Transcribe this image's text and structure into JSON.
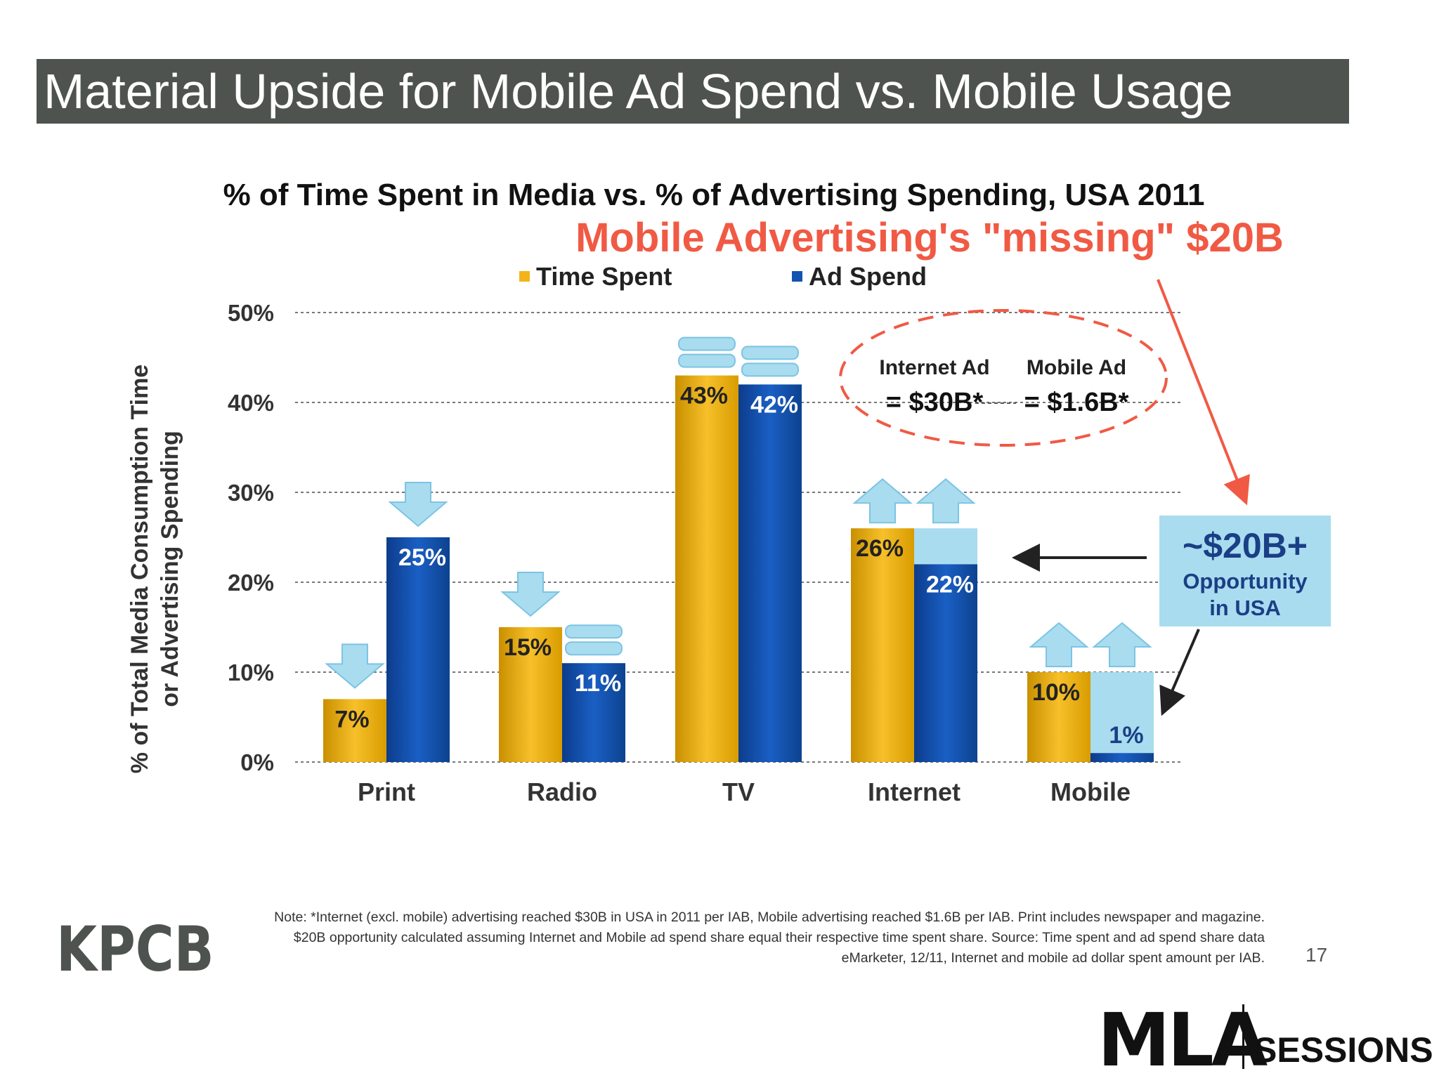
{
  "slide": {
    "title": "Material Upside for Mobile Ad Spend vs. Mobile Usage",
    "page_number": "17",
    "note": "Note: *Internet (excl. mobile) advertising reached $30B in USA in 2011 per IAB, Mobile advertising reached $1.6B per IAB. Print includes newspaper and magazine. $20B opportunity calculated assuming Internet and Mobile ad spend share equal their respective time spent share. Source: Time spent and ad spend share data eMarketer, 12/11, Internet and mobile ad dollar spent amount per IAB.",
    "kpcb_logo": "KPCB",
    "mla_logo": "MLA",
    "sessions_logo": "SESSIONS"
  },
  "annotations": {
    "missing": "Mobile Advertising's \"missing\" $20B",
    "oval_internet_label": "Internet Ad",
    "oval_internet_value": "= $30B*",
    "oval_mobile_label": "Mobile Ad",
    "oval_mobile_value": "= $1.6B*",
    "opportunity_value": "~$20B+",
    "opportunity_line1": "Opportunity",
    "opportunity_line2": "in USA"
  },
  "colors": {
    "time_spent": "#f2b418",
    "ad_spend": "#1553b0",
    "gap_fill": "#a9dcef",
    "title_bar": "#4e5350",
    "missing": "#f05a44",
    "opportunity_box": "#a9dcef"
  },
  "chart_data": {
    "type": "bar",
    "title": "% of Time Spent in Media vs. % of Advertising Spending, USA 2011",
    "ylabel_line1": "% of Total Media Consumption Time",
    "ylabel_line2": "or Advertising Spending",
    "xlabel": "",
    "ylim": [
      0,
      50
    ],
    "yticks": [
      "0%",
      "10%",
      "20%",
      "30%",
      "40%",
      "50%"
    ],
    "categories": [
      "Print",
      "Radio",
      "TV",
      "Internet",
      "Mobile"
    ],
    "series": [
      {
        "name": "Time Spent",
        "values": [
          7,
          15,
          43,
          26,
          10
        ],
        "labels": [
          "7%",
          "15%",
          "43%",
          "26%",
          "10%"
        ]
      },
      {
        "name": "Ad Spend",
        "values": [
          25,
          11,
          42,
          22,
          1
        ],
        "labels": [
          "25%",
          "11%",
          "42%",
          "22%",
          "1%"
        ]
      }
    ],
    "trend_indicators": {
      "Time Spent": [
        "down",
        "down",
        "flat",
        "up",
        "up"
      ],
      "Ad Spend": [
        "down",
        "flat",
        "flat",
        "up",
        "up"
      ]
    },
    "gap_to": {
      "Internet": 26,
      "Mobile": 10
    },
    "legend_position": "top",
    "grid": true
  }
}
